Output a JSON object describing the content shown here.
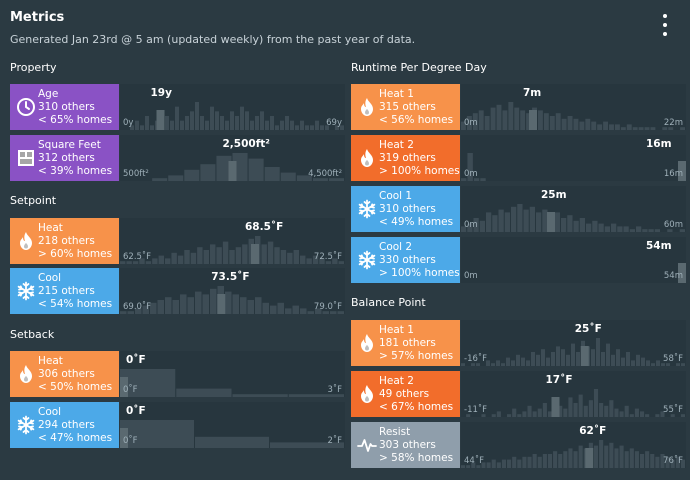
{
  "header": {
    "title": "Metrics",
    "subtitle": "Generated Jan 23rd @ 5 am (updated weekly) from the past year of data."
  },
  "sections": {
    "property": "Property",
    "setpoint": "Setpoint",
    "setback": "Setback",
    "runtime": "Runtime Per Degree Day",
    "balance": "Balance Point"
  },
  "colors": {
    "purple": "#8a52c5",
    "orange": "#f7924a",
    "dark_orange": "#f26d2b",
    "blue": "#4ca9e8",
    "gray": "#8f9eab",
    "bar": "#3d4c55",
    "bar_highlight": "#5a6970"
  },
  "metrics": {
    "age": {
      "name": "Age",
      "others": "310 others",
      "pct": "< 65% homes",
      "value": "19y",
      "min": "0y",
      "max": "69y",
      "icon": "clock-icon",
      "highlight": 0.18,
      "bars": [
        0,
        0,
        1,
        2,
        1,
        3,
        1,
        2,
        4,
        3,
        2,
        5,
        2,
        3,
        4,
        6,
        3,
        2,
        5,
        4,
        3,
        2,
        4,
        3,
        5,
        4,
        2,
        3,
        4,
        2,
        3,
        1,
        2,
        3,
        2,
        1,
        2,
        1,
        1,
        2,
        1,
        1,
        0,
        1,
        1
      ]
    },
    "square_feet": {
      "name": "Square Feet",
      "others": "312 others",
      "pct": "< 39% homes",
      "value": "2,500ft²",
      "min": "500ft²",
      "max": "4,500ft²",
      "icon": "floorplan-icon",
      "highlight": 0.5,
      "bars": [
        0,
        0,
        1,
        2,
        4,
        6,
        9,
        10,
        8,
        5,
        3,
        2,
        1,
        1
      ]
    },
    "setpoint_heat": {
      "name": "Heat",
      "others": "218 others",
      "pct": "> 60% homes",
      "value": "68.5˚F",
      "min": "62.5˚F",
      "max": "72.5˚F",
      "icon": "flame-icon",
      "highlight": 0.6,
      "bars": [
        1,
        1,
        1,
        2,
        1,
        2,
        3,
        2,
        4,
        3,
        5,
        4,
        6,
        5,
        7,
        6,
        8,
        5,
        6,
        7,
        9,
        10,
        7,
        8,
        6,
        5,
        4,
        5,
        3,
        2,
        3,
        2,
        1,
        2,
        1
      ]
    },
    "setpoint_cool": {
      "name": "Cool",
      "others": "215 others",
      "pct": "< 54% homes",
      "value": "73.5˚F",
      "min": "69.0˚F",
      "max": "79.0˚F",
      "icon": "snowflake-icon",
      "highlight": 0.45,
      "bars": [
        1,
        1,
        2,
        3,
        4,
        5,
        6,
        5,
        7,
        6,
        8,
        7,
        9,
        10,
        8,
        7,
        6,
        5,
        6,
        4,
        3,
        4,
        2,
        3,
        2,
        1,
        2,
        1,
        1,
        1
      ]
    },
    "setback_heat": {
      "name": "Heat",
      "others": "306 others",
      "pct": "< 50% homes",
      "value": "0˚F",
      "min": "0˚F",
      "max": "3˚F",
      "icon": "flame-icon",
      "highlight": 0,
      "bars": [
        10,
        3,
        1,
        1
      ]
    },
    "setback_cool": {
      "name": "Cool",
      "others": "294 others",
      "pct": "< 47% homes",
      "value": "0˚F",
      "min": "0˚F",
      "max": "2˚F",
      "icon": "snowflake-icon",
      "highlight": 0,
      "bars": [
        10,
        4,
        2
      ]
    },
    "runtime_heat1": {
      "name": "Heat 1",
      "others": "315 others",
      "pct": "< 56% homes",
      "value": "7m",
      "min": "0m",
      "max": "22m",
      "icon": "flame-icon",
      "highlight": 0.32,
      "bars": [
        3,
        5,
        6,
        7,
        5,
        8,
        9,
        7,
        10,
        8,
        7,
        6,
        8,
        7,
        6,
        5,
        6,
        4,
        5,
        4,
        3,
        4,
        3,
        2,
        3,
        2,
        2,
        1,
        2,
        1,
        1,
        1,
        1,
        0,
        1,
        1,
        0,
        1
      ]
    },
    "runtime_heat2": {
      "name": "Heat 2",
      "others": "319 others",
      "pct": "> 100% homes",
      "value": "16m",
      "min": "0m",
      "max": "16m",
      "icon": "flame-icon",
      "highlight": 1,
      "bars": [
        1,
        10,
        1,
        1,
        0,
        0,
        0,
        0,
        0,
        0,
        0,
        0,
        0,
        0,
        0,
        0,
        0,
        0,
        0,
        0,
        0,
        0,
        0,
        0,
        0,
        0,
        0,
        0,
        0,
        0,
        0,
        0,
        0,
        0,
        1
      ]
    },
    "runtime_cool1": {
      "name": "Cool 1",
      "others": "310 others",
      "pct": "< 49% homes",
      "value": "25m",
      "min": "0m",
      "max": "60m",
      "icon": "snowflake-icon",
      "highlight": 0.4,
      "bars": [
        2,
        3,
        5,
        4,
        7,
        6,
        8,
        7,
        9,
        10,
        8,
        9,
        7,
        8,
        6,
        7,
        5,
        6,
        4,
        5,
        3,
        4,
        3,
        2,
        3,
        2,
        2,
        1,
        2,
        1,
        1,
        1,
        0,
        1,
        0,
        1
      ]
    },
    "runtime_cool2": {
      "name": "Cool 2",
      "others": "330 others",
      "pct": "> 100% homes",
      "value": "54m",
      "min": "0m",
      "max": "54m",
      "icon": "snowflake-icon",
      "highlight": 1,
      "bars": [
        0,
        0,
        0,
        0,
        0,
        0,
        0,
        0,
        0,
        0,
        0,
        0,
        0,
        0,
        0,
        0,
        0,
        0,
        0,
        0,
        0,
        0,
        0,
        0,
        0,
        0,
        0,
        0,
        0,
        0,
        0,
        0,
        0,
        0,
        0
      ]
    },
    "balance_heat1": {
      "name": "Heat 1",
      "others": "181 others",
      "pct": "> 57% homes",
      "value": "25˚F",
      "min": "-16˚F",
      "max": "58˚F",
      "icon": "flame-icon",
      "highlight": 0.55,
      "bars": [
        1,
        0,
        1,
        1,
        0,
        2,
        1,
        2,
        1,
        3,
        2,
        4,
        3,
        2,
        5,
        4,
        6,
        3,
        5,
        7,
        6,
        4,
        8,
        5,
        9,
        7,
        6,
        10,
        5,
        8,
        4,
        6,
        3,
        5,
        2,
        4,
        3,
        2,
        1,
        2,
        1,
        1,
        0,
        1,
        1
      ]
    },
    "balance_heat2": {
      "name": "Heat 2",
      "others": "49 others",
      "pct": "< 67% homes",
      "value": "17˚F",
      "min": "-11˚F",
      "max": "55˚F",
      "icon": "flame-icon",
      "highlight": 0.42,
      "bars": [
        0,
        1,
        0,
        0,
        1,
        0,
        1,
        2,
        0,
        1,
        3,
        1,
        2,
        4,
        2,
        3,
        5,
        2,
        6,
        4,
        3,
        7,
        5,
        8,
        4,
        6,
        10,
        5,
        4,
        6,
        3,
        2,
        4,
        1,
        3,
        2,
        1,
        0,
        1,
        2,
        0,
        1,
        0,
        1
      ]
    },
    "balance_resist": {
      "name": "Resist",
      "others": "303 others",
      "pct": "> 58% homes",
      "value": "62˚F",
      "min": "44˚F",
      "max": "76˚F",
      "icon": "pulse-icon",
      "highlight": 0.57,
      "bars": [
        1,
        1,
        2,
        1,
        2,
        2,
        3,
        2,
        3,
        3,
        4,
        3,
        4,
        4,
        5,
        4,
        5,
        5,
        6,
        5,
        6,
        7,
        6,
        8,
        7,
        9,
        8,
        10,
        8,
        9,
        7,
        8,
        6,
        7,
        6,
        5,
        6,
        5,
        4,
        5,
        4,
        3,
        4,
        3
      ]
    }
  }
}
